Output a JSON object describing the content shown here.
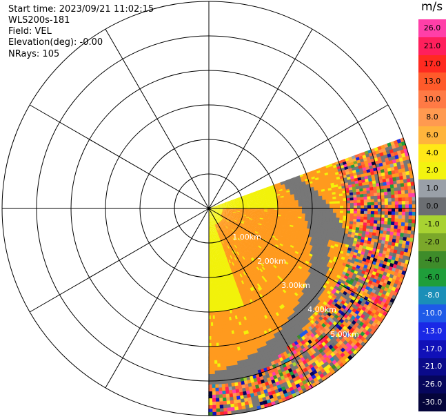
{
  "info": {
    "start_time": "Start time: 2023/09/21 11:02:15",
    "instrument": "WLS200s-181",
    "field": "Field: VEL",
    "elevation": "Elevation(deg): -0.00",
    "nrays": "NRays: 105"
  },
  "colorbar": {
    "unit": "m/s",
    "levels": [
      {
        "label": "26.0",
        "color": "#ff3fa8"
      },
      {
        "label": "21.0",
        "color": "#ff1f5c"
      },
      {
        "label": "17.0",
        "color": "#ff2a20"
      },
      {
        "label": "13.0",
        "color": "#ff5a2a"
      },
      {
        "label": "10.0",
        "color": "#ff7a45"
      },
      {
        "label": "8.0",
        "color": "#ff9a50"
      },
      {
        "label": "6.0",
        "color": "#ffb43c"
      },
      {
        "label": "4.0",
        "color": "#ffe817"
      },
      {
        "label": "2.0",
        "color": "#f3f310"
      },
      {
        "label": "1.0",
        "color": "#9aa0a8"
      },
      {
        "label": "0.0",
        "color": "#6b6e72"
      },
      {
        "label": "-1.0",
        "color": "#a8d232"
      },
      {
        "label": "-2.0",
        "color": "#7ba82a"
      },
      {
        "label": "-4.0",
        "color": "#3e8c2a"
      },
      {
        "label": "-6.0",
        "color": "#1f9e3a"
      },
      {
        "label": "-8.0",
        "color": "#1a8fb8"
      },
      {
        "label": "-10.0",
        "color": "#1e5ae8"
      },
      {
        "label": "-13.0",
        "color": "#1a28e6"
      },
      {
        "label": "-17.0",
        "color": "#1010b8"
      },
      {
        "label": "-21.0",
        "color": "#0a0a8a"
      },
      {
        "label": "-26.0",
        "color": "#06065c"
      },
      {
        "label": "-30.0",
        "color": "#04043a"
      }
    ]
  },
  "range_labels": [
    "1.00km",
    "2.00km",
    "3.00km",
    "4.00km",
    "5.00km"
  ],
  "sector": {
    "start_bearing_deg": 70,
    "end_bearing_deg": 180,
    "max_range_km": 6.0
  },
  "colors": {
    "grid": "#000000",
    "range_label": "#ffffff",
    "yellow": "#f2f20a",
    "orange": "#ff9a1e",
    "gray": "#777777"
  }
}
